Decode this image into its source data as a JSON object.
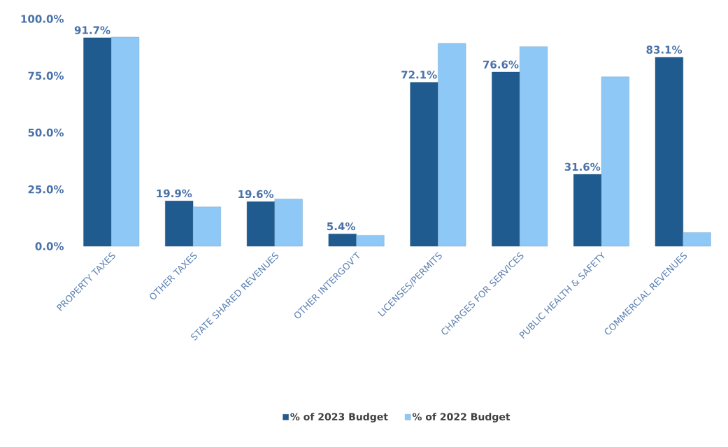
{
  "chart_data": {
    "type": "bar",
    "categories": [
      "PROPERTY TAXES",
      "OTHER TAXES",
      "STATE SHARED REVENUES",
      "OTHER INTERGOV'T",
      "LICENSES/PERMITS",
      "CHARGES FOR SERVICES",
      "PUBLIC HEALTH & SAFETY",
      "COMMERCIAL REVENUES"
    ],
    "series": [
      {
        "name": "% of 2023 Budget",
        "color": "#1f5b8e",
        "values": [
          91.7,
          19.9,
          19.6,
          5.4,
          72.1,
          76.6,
          31.6,
          83.1
        ],
        "value_labels": [
          "91.7%",
          "19.9%",
          "19.6%",
          "5.4%",
          "72.1%",
          "76.6%",
          "31.6%",
          "83.1%"
        ]
      },
      {
        "name": "% of 2022 Budget",
        "color": "#8ec8f6",
        "values": [
          92,
          17.3,
          20.8,
          4.8,
          89.2,
          87.8,
          74.5,
          6
        ]
      }
    ],
    "ylim": [
      0,
      100
    ],
    "yticks": [
      {
        "value": 0,
        "label": "0.0%"
      },
      {
        "value": 25,
        "label": "25.0%"
      },
      {
        "value": 50,
        "label": "50.0%"
      },
      {
        "value": 75,
        "label": "75.0%"
      },
      {
        "value": 100,
        "label": "100.0%"
      }
    ],
    "grid": false,
    "legend": "bottom"
  }
}
